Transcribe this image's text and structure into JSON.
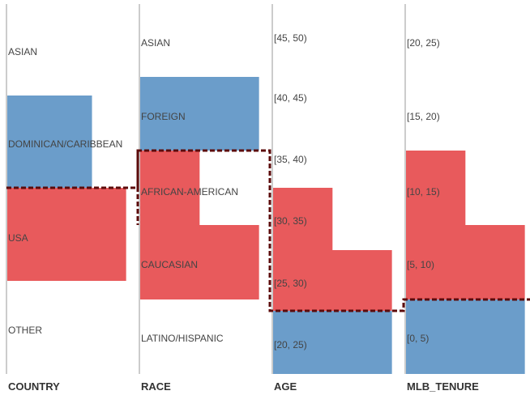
{
  "colors": {
    "blue": "#6b9dca",
    "red": "#e85a5c",
    "highlight": "#5c0b0b",
    "axis": "#cccccc",
    "text": "#444444"
  },
  "chart_data": {
    "type": "parallel-sets",
    "dimensions": [
      {
        "name": "COUNTRY",
        "categories": [
          {
            "label": "ASIAN",
            "blue": 0,
            "red": 0
          },
          {
            "label": "DOMINICAN/CARIBBEAN",
            "blue": 0.67,
            "red": 0
          },
          {
            "label": "USA",
            "blue": 0,
            "red": 0.94
          },
          {
            "label": "OTHER",
            "blue": 0,
            "red": 0
          }
        ]
      },
      {
        "name": "RACE",
        "categories": [
          {
            "label": "ASIAN",
            "blue": 0,
            "red": 0
          },
          {
            "label": "FOREIGN",
            "blue": 0.94,
            "red": 0
          },
          {
            "label": "AFRICAN-AMERICAN",
            "blue": 0,
            "red": 0.47
          },
          {
            "label": "CAUCASIAN",
            "blue": 0,
            "red": 0.94
          },
          {
            "label": "LATINO/HISPANIC",
            "blue": 0,
            "red": 0
          }
        ]
      },
      {
        "name": "AGE",
        "categories": [
          {
            "label": "[45, 50)",
            "blue": 0,
            "red": 0
          },
          {
            "label": "[40, 45)",
            "blue": 0,
            "red": 0
          },
          {
            "label": "[35, 40)",
            "blue": 0,
            "red": 0
          },
          {
            "label": "[30, 35)",
            "blue": 0,
            "red": 0.47
          },
          {
            "label": "[25, 30)",
            "blue": 0,
            "red": 0.94
          },
          {
            "label": "[20, 25)",
            "blue": 0.94,
            "red": 0
          }
        ]
      },
      {
        "name": "MLB_TENURE",
        "categories": [
          {
            "label": "[20, 25)",
            "blue": 0,
            "red": 0
          },
          {
            "label": "[15, 20)",
            "blue": 0,
            "red": 0
          },
          {
            "label": "[10, 15)",
            "blue": 0,
            "red": 0.47
          },
          {
            "label": "[5, 10)",
            "blue": 0,
            "red": 0.94
          },
          {
            "label": "[0, 5)",
            "blue": 0.94,
            "red": 0
          }
        ]
      }
    ]
  }
}
